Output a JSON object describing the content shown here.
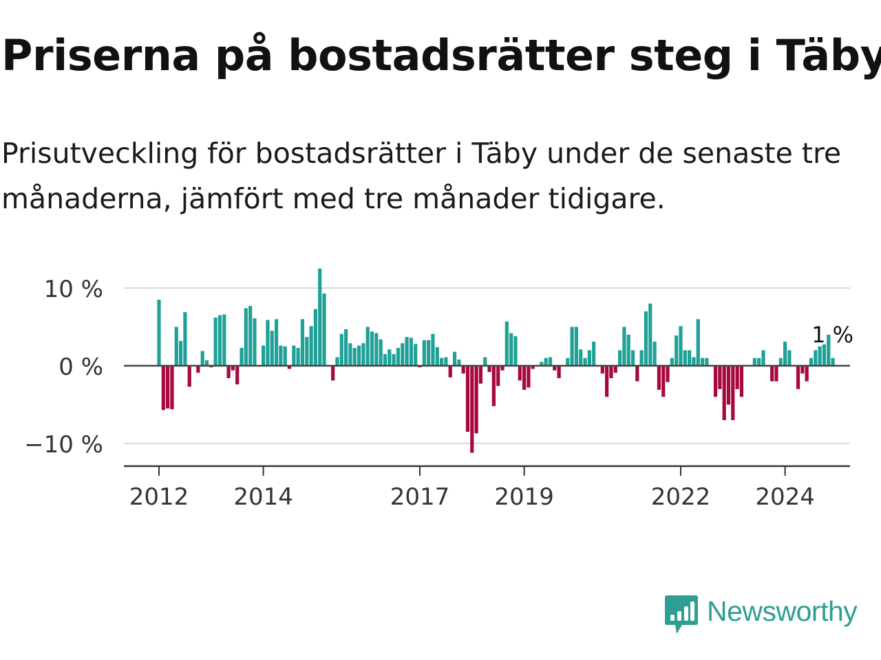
{
  "title": "Priserna på bostadsrätter steg i Täby",
  "subtitle": "Prisutveckling för bostadsrätter i Täby under de senaste tre månaderna, jämfört med tre månader tidigare.",
  "brand": {
    "name": "Newsworthy",
    "color": "#2f9e92",
    "icon": "newsworthy-logo-icon"
  },
  "chart_data": {
    "type": "bar",
    "ylabel": "",
    "xlabel": "",
    "ylim": [
      -13,
      13
    ],
    "yticks": [
      10,
      0,
      -10
    ],
    "ytick_labels": [
      "10 %",
      "0 %",
      "−10 %"
    ],
    "xticks": [
      2012,
      2014,
      2017,
      2019,
      2022,
      2024
    ],
    "xtick_labels": [
      "2012",
      "2014",
      "2017",
      "2019",
      "2022",
      "2024"
    ],
    "x_start": 2012.0,
    "x_step_months": 1,
    "positive_color": "#1fa197",
    "negative_color": "#a6083f",
    "last_value_label": "1 %",
    "values": [
      8.5,
      -5.7,
      -5.5,
      -5.6,
      5.0,
      3.2,
      6.9,
      -2.7,
      0.0,
      -0.9,
      1.9,
      0.7,
      -0.2,
      6.2,
      6.5,
      6.6,
      -1.6,
      -0.6,
      -2.4,
      2.3,
      7.4,
      7.7,
      6.1,
      0.0,
      2.6,
      5.9,
      4.5,
      6.0,
      2.6,
      2.5,
      -0.4,
      2.6,
      2.3,
      6.0,
      3.7,
      5.1,
      7.3,
      12.5,
      9.3,
      0.0,
      -1.9,
      1.1,
      4.1,
      4.7,
      2.9,
      2.3,
      2.6,
      2.9,
      5.0,
      4.4,
      4.2,
      3.4,
      1.5,
      2.1,
      1.5,
      2.3,
      2.9,
      3.7,
      3.6,
      2.8,
      -0.2,
      3.3,
      3.3,
      4.1,
      2.4,
      1.0,
      1.1,
      -1.5,
      1.8,
      0.8,
      -1.0,
      -8.5,
      -11.2,
      -8.7,
      -2.3,
      1.1,
      -0.8,
      -5.2,
      -2.6,
      -0.6,
      5.7,
      4.2,
      3.8,
      -1.9,
      -3.1,
      -2.8,
      -0.4,
      0.0,
      0.5,
      1.0,
      1.1,
      -0.6,
      -1.6,
      0.0,
      1.0,
      5.0,
      5.0,
      2.1,
      1.0,
      2.0,
      3.1,
      0.0,
      -1.0,
      -4.0,
      -1.6,
      -0.9,
      2.0,
      5.0,
      4.0,
      2.0,
      -2.0,
      2.0,
      7.0,
      8.0,
      3.1,
      -3.1,
      -4.0,
      -2.1,
      1.0,
      3.9,
      5.1,
      2.0,
      2.0,
      1.1,
      6.0,
      1.0,
      1.0,
      0.0,
      -4.0,
      -3.0,
      -7.0,
      -5.0,
      -7.0,
      -3.0,
      -4.0,
      0.0,
      0.0,
      1.0,
      1.0,
      2.0,
      0.0,
      -2.0,
      -2.0,
      1.0,
      3.1,
      2.0,
      0.0,
      -3.0,
      -1.0,
      -2.0,
      1.0,
      2.0,
      2.5,
      3.0,
      4.0,
      1.0
    ]
  }
}
